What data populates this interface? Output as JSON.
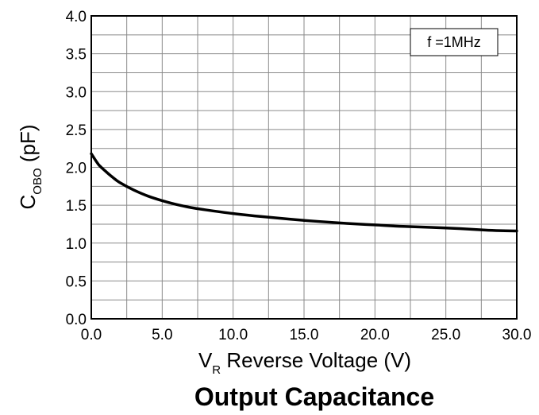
{
  "chart_data": {
    "type": "line",
    "title": "Output Capacitance",
    "xlabel": {
      "main": "V",
      "sub": "R",
      "rest": " Reverse Voltage (V)"
    },
    "ylabel": {
      "main": "C",
      "sub": "OBO",
      "rest": " (pF)"
    },
    "annotation": "f =1MHz",
    "xlim": [
      0,
      30
    ],
    "ylim": [
      0,
      4
    ],
    "x_ticks": [
      0,
      5,
      10,
      15,
      20,
      25,
      30
    ],
    "x_tick_labels": [
      "0.0",
      "5.0",
      "10.0",
      "15.0",
      "20.0",
      "25.0",
      "30.0"
    ],
    "y_ticks": [
      0,
      0.5,
      1,
      1.5,
      2,
      2.5,
      3,
      3.5,
      4
    ],
    "y_tick_labels": [
      "0.0",
      "0.5",
      "1.0",
      "1.5",
      "2.0",
      "2.5",
      "3.0",
      "3.5",
      "4.0"
    ],
    "x_minor_step": 2.5,
    "y_minor_step": 0.25,
    "grid": true,
    "series": [
      {
        "x": [
          0,
          0.5,
          1,
          1.5,
          2,
          3,
          4,
          5,
          6,
          7,
          8,
          10,
          12,
          15,
          18,
          20,
          22,
          25,
          28,
          30
        ],
        "y": [
          2.18,
          2.04,
          1.95,
          1.87,
          1.8,
          1.7,
          1.62,
          1.56,
          1.51,
          1.47,
          1.44,
          1.39,
          1.35,
          1.3,
          1.26,
          1.24,
          1.22,
          1.2,
          1.17,
          1.16
        ],
        "color": "#000000"
      }
    ]
  }
}
